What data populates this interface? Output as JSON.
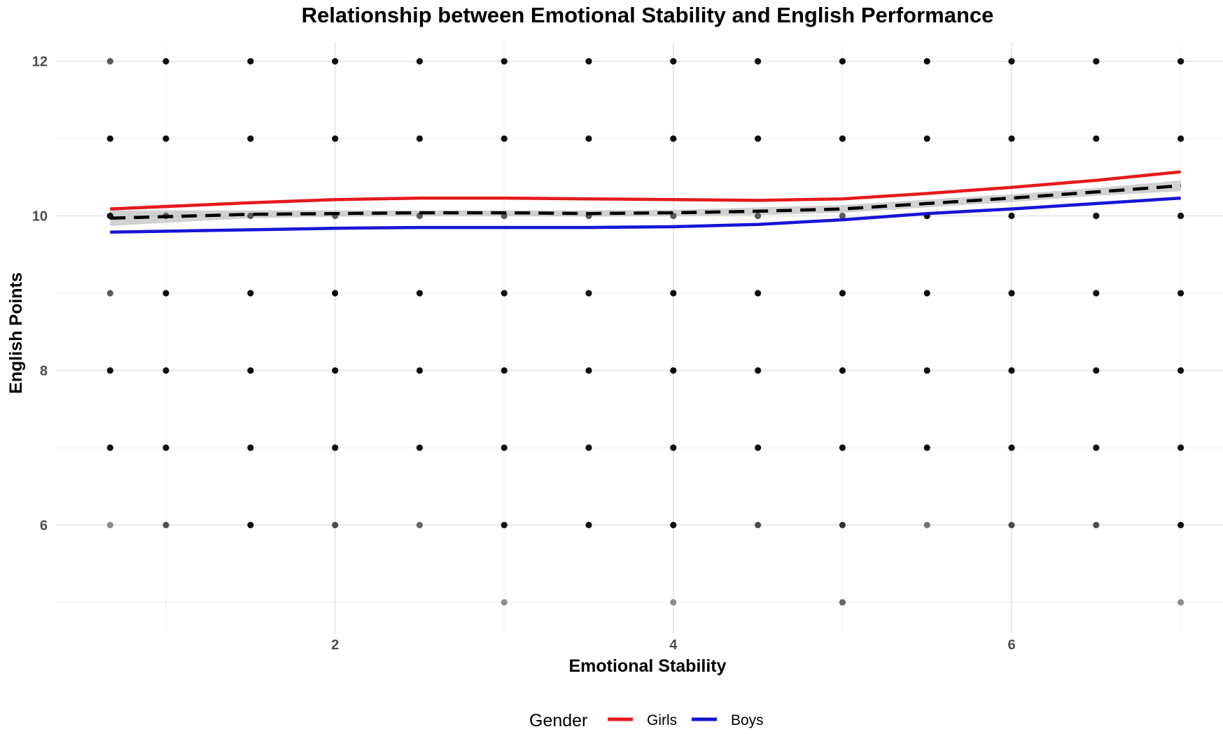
{
  "chart_data": {
    "type": "scatter",
    "title": "Relationship between Emotional Stability and English Performance",
    "xlabel": "Emotional Stability",
    "ylabel": "English Points",
    "xlim": [
      0.35,
      7.25
    ],
    "ylim": [
      4.6,
      12.25
    ],
    "x_ticks": [
      2,
      4,
      6
    ],
    "y_ticks": [
      6,
      8,
      10,
      12
    ],
    "x_minor_grid": [
      1,
      3,
      5,
      7
    ],
    "y_minor_grid": [
      5,
      7,
      9,
      11
    ],
    "grid": true,
    "legend": {
      "title": "Gender",
      "position": "bottom",
      "entries": [
        {
          "label": "Girls",
          "color": "#e41a1c"
        },
        {
          "label": "Boys",
          "color": "#1515d6"
        }
      ]
    },
    "points": [
      {
        "x": 0.67,
        "y": 12,
        "shade": 0.35
      },
      {
        "x": 1.0,
        "y": 12,
        "shade": 0.05
      },
      {
        "x": 1.5,
        "y": 12,
        "shade": 0.05
      },
      {
        "x": 2.0,
        "y": 12,
        "shade": 0.05
      },
      {
        "x": 2.5,
        "y": 12,
        "shade": 0.05
      },
      {
        "x": 3.0,
        "y": 12,
        "shade": 0.05
      },
      {
        "x": 3.5,
        "y": 12,
        "shade": 0.05
      },
      {
        "x": 4.0,
        "y": 12,
        "shade": 0.05
      },
      {
        "x": 4.5,
        "y": 12,
        "shade": 0.05
      },
      {
        "x": 5.0,
        "y": 12,
        "shade": 0.05
      },
      {
        "x": 5.5,
        "y": 12,
        "shade": 0.05
      },
      {
        "x": 6.0,
        "y": 12,
        "shade": 0.05
      },
      {
        "x": 6.5,
        "y": 12,
        "shade": 0.05
      },
      {
        "x": 7.0,
        "y": 12,
        "shade": 0.05
      },
      {
        "x": 0.67,
        "y": 11,
        "shade": 0.05
      },
      {
        "x": 1.0,
        "y": 11,
        "shade": 0.05
      },
      {
        "x": 1.5,
        "y": 11,
        "shade": 0.05
      },
      {
        "x": 2.0,
        "y": 11,
        "shade": 0.05
      },
      {
        "x": 2.5,
        "y": 11,
        "shade": 0.05
      },
      {
        "x": 3.0,
        "y": 11,
        "shade": 0.05
      },
      {
        "x": 3.5,
        "y": 11,
        "shade": 0.05
      },
      {
        "x": 4.0,
        "y": 11,
        "shade": 0.05
      },
      {
        "x": 4.5,
        "y": 11,
        "shade": 0.05
      },
      {
        "x": 5.0,
        "y": 11,
        "shade": 0.05
      },
      {
        "x": 5.5,
        "y": 11,
        "shade": 0.05
      },
      {
        "x": 6.0,
        "y": 11,
        "shade": 0.05
      },
      {
        "x": 6.5,
        "y": 11,
        "shade": 0.05
      },
      {
        "x": 7.0,
        "y": 11,
        "shade": 0.05
      },
      {
        "x": 0.67,
        "y": 10,
        "shade": 0.05
      },
      {
        "x": 1.0,
        "y": 10,
        "shade": 0.35
      },
      {
        "x": 1.5,
        "y": 10,
        "shade": 0.35
      },
      {
        "x": 2.0,
        "y": 10,
        "shade": 0.35
      },
      {
        "x": 2.5,
        "y": 10,
        "shade": 0.35
      },
      {
        "x": 3.0,
        "y": 10,
        "shade": 0.35
      },
      {
        "x": 3.5,
        "y": 10,
        "shade": 0.35
      },
      {
        "x": 4.0,
        "y": 10,
        "shade": 0.35
      },
      {
        "x": 4.5,
        "y": 10,
        "shade": 0.35
      },
      {
        "x": 5.0,
        "y": 10,
        "shade": 0.35
      },
      {
        "x": 5.5,
        "y": 10,
        "shade": 0.05
      },
      {
        "x": 6.0,
        "y": 10,
        "shade": 0.05
      },
      {
        "x": 6.5,
        "y": 10,
        "shade": 0.05
      },
      {
        "x": 7.0,
        "y": 10,
        "shade": 0.05
      },
      {
        "x": 0.67,
        "y": 9,
        "shade": 0.35
      },
      {
        "x": 1.0,
        "y": 9,
        "shade": 0.05
      },
      {
        "x": 1.5,
        "y": 9,
        "shade": 0.05
      },
      {
        "x": 2.0,
        "y": 9,
        "shade": 0.05
      },
      {
        "x": 2.5,
        "y": 9,
        "shade": 0.05
      },
      {
        "x": 3.0,
        "y": 9,
        "shade": 0.05
      },
      {
        "x": 3.5,
        "y": 9,
        "shade": 0.05
      },
      {
        "x": 4.0,
        "y": 9,
        "shade": 0.05
      },
      {
        "x": 4.5,
        "y": 9,
        "shade": 0.05
      },
      {
        "x": 5.0,
        "y": 9,
        "shade": 0.05
      },
      {
        "x": 5.5,
        "y": 9,
        "shade": 0.05
      },
      {
        "x": 6.0,
        "y": 9,
        "shade": 0.05
      },
      {
        "x": 6.5,
        "y": 9,
        "shade": 0.05
      },
      {
        "x": 7.0,
        "y": 9,
        "shade": 0.05
      },
      {
        "x": 0.67,
        "y": 8,
        "shade": 0.05
      },
      {
        "x": 1.0,
        "y": 8,
        "shade": 0.05
      },
      {
        "x": 1.5,
        "y": 8,
        "shade": 0.05
      },
      {
        "x": 2.0,
        "y": 8,
        "shade": 0.05
      },
      {
        "x": 2.5,
        "y": 8,
        "shade": 0.05
      },
      {
        "x": 3.0,
        "y": 8,
        "shade": 0.05
      },
      {
        "x": 3.5,
        "y": 8,
        "shade": 0.05
      },
      {
        "x": 4.0,
        "y": 8,
        "shade": 0.05
      },
      {
        "x": 4.5,
        "y": 8,
        "shade": 0.05
      },
      {
        "x": 5.0,
        "y": 8,
        "shade": 0.05
      },
      {
        "x": 5.5,
        "y": 8,
        "shade": 0.05
      },
      {
        "x": 6.0,
        "y": 8,
        "shade": 0.05
      },
      {
        "x": 6.5,
        "y": 8,
        "shade": 0.05
      },
      {
        "x": 7.0,
        "y": 8,
        "shade": 0.05
      },
      {
        "x": 0.67,
        "y": 7,
        "shade": 0.05
      },
      {
        "x": 1.0,
        "y": 7,
        "shade": 0.05
      },
      {
        "x": 1.5,
        "y": 7,
        "shade": 0.05
      },
      {
        "x": 2.0,
        "y": 7,
        "shade": 0.05
      },
      {
        "x": 2.5,
        "y": 7,
        "shade": 0.05
      },
      {
        "x": 3.0,
        "y": 7,
        "shade": 0.05
      },
      {
        "x": 3.5,
        "y": 7,
        "shade": 0.05
      },
      {
        "x": 4.0,
        "y": 7,
        "shade": 0.05
      },
      {
        "x": 4.5,
        "y": 7,
        "shade": 0.05
      },
      {
        "x": 5.0,
        "y": 7,
        "shade": 0.05
      },
      {
        "x": 5.5,
        "y": 7,
        "shade": 0.05
      },
      {
        "x": 6.0,
        "y": 7,
        "shade": 0.05
      },
      {
        "x": 6.5,
        "y": 7,
        "shade": 0.05
      },
      {
        "x": 7.0,
        "y": 7,
        "shade": 0.05
      },
      {
        "x": 0.67,
        "y": 6,
        "shade": 0.55
      },
      {
        "x": 1.0,
        "y": 6,
        "shade": 0.3
      },
      {
        "x": 1.5,
        "y": 6,
        "shade": 0.05
      },
      {
        "x": 2.0,
        "y": 6,
        "shade": 0.3
      },
      {
        "x": 2.5,
        "y": 6,
        "shade": 0.4
      },
      {
        "x": 3.0,
        "y": 6,
        "shade": 0.05
      },
      {
        "x": 3.5,
        "y": 6,
        "shade": 0.05
      },
      {
        "x": 4.0,
        "y": 6,
        "shade": 0.05
      },
      {
        "x": 4.5,
        "y": 6,
        "shade": 0.3
      },
      {
        "x": 5.0,
        "y": 6,
        "shade": 0.2
      },
      {
        "x": 5.5,
        "y": 6,
        "shade": 0.45
      },
      {
        "x": 6.0,
        "y": 6,
        "shade": 0.3
      },
      {
        "x": 6.5,
        "y": 6,
        "shade": 0.3
      },
      {
        "x": 7.0,
        "y": 6,
        "shade": 0.05
      },
      {
        "x": 3.0,
        "y": 5,
        "shade": 0.55
      },
      {
        "x": 4.0,
        "y": 5,
        "shade": 0.55
      },
      {
        "x": 5.0,
        "y": 5,
        "shade": 0.4
      },
      {
        "x": 7.0,
        "y": 5,
        "shade": 0.55
      }
    ],
    "series": [
      {
        "name": "Girls",
        "color": "#e41a1c",
        "x": [
          0.67,
          1.5,
          2.0,
          2.5,
          3.0,
          3.5,
          4.0,
          4.5,
          5.0,
          5.5,
          6.0,
          6.5,
          7.0
        ],
        "y": [
          10.09,
          10.17,
          10.21,
          10.23,
          10.23,
          10.22,
          10.21,
          10.2,
          10.22,
          10.29,
          10.37,
          10.46,
          10.57
        ]
      },
      {
        "name": "Boys",
        "color": "#1515d6",
        "x": [
          0.67,
          1.5,
          2.0,
          2.5,
          3.0,
          3.5,
          4.0,
          4.5,
          5.0,
          5.5,
          6.0,
          6.5,
          7.0
        ],
        "y": [
          9.79,
          9.82,
          9.84,
          9.85,
          9.85,
          9.85,
          9.86,
          9.89,
          9.95,
          10.03,
          10.09,
          10.16,
          10.23
        ]
      }
    ],
    "overall_trend": {
      "style": "dashed",
      "color": "#000000",
      "x": [
        0.67,
        1.5,
        2.0,
        2.5,
        3.0,
        3.5,
        4.0,
        4.5,
        5.0,
        5.5,
        6.0,
        6.5,
        7.0
      ],
      "y": [
        9.97,
        10.02,
        10.03,
        10.04,
        10.04,
        10.03,
        10.04,
        10.06,
        10.09,
        10.16,
        10.23,
        10.31,
        10.39
      ],
      "ci_upper": [
        10.07,
        10.07,
        10.07,
        10.07,
        10.07,
        10.07,
        10.08,
        10.11,
        10.14,
        10.21,
        10.28,
        10.36,
        10.46
      ],
      "ci_lower": [
        9.87,
        9.97,
        9.99,
        10.0,
        10.0,
        9.99,
        10.0,
        10.01,
        10.04,
        10.11,
        10.18,
        10.26,
        10.32
      ],
      "ci_color": "#bdbdbd"
    }
  }
}
